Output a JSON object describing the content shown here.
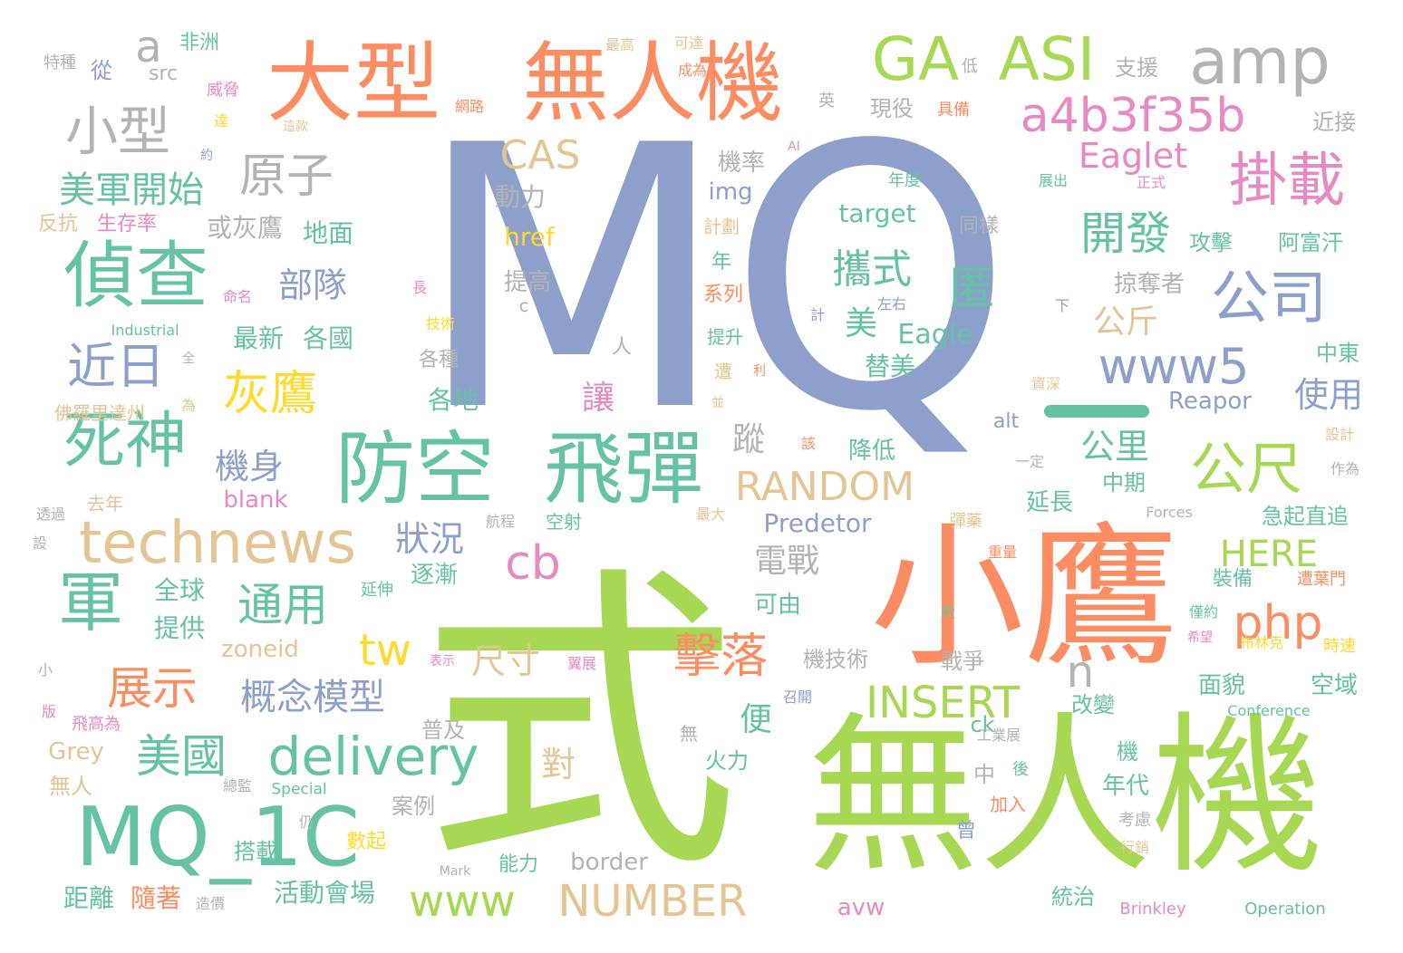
{
  "palette": {
    "blue": "#8da0cb",
    "green": "#a6d854",
    "orange": "#fc8d62",
    "teal": "#66c2a5",
    "pink": "#e78ac3",
    "yellow": "#ffd92f",
    "tan": "#e5c494",
    "gray": "#b3b3b3"
  },
  "words": {
    "w001": "MQ",
    "w002": "式",
    "w003": "無人機",
    "w004": "小鷹",
    "w005": "大型",
    "w006": "無人機",
    "w007": "防空",
    "w008": "飛彈",
    "w009": "MQ_1C",
    "w010": "偵查",
    "w011": "死神",
    "w012": "technews",
    "w013": "GA",
    "w014": "ASI",
    "w015": "amp",
    "w016": "a4b3f35b",
    "w017": "掛載",
    "w018": "公司",
    "w019": "公尺",
    "w020": "www5",
    "w021": "小型",
    "w022": "原子",
    "w023": "美軍開始",
    "w024": "軍",
    "w025": "近日",
    "w026": "灰鷹",
    "w027": "美國",
    "w028": "delivery",
    "w029": "展示",
    "w030": "通用",
    "w031": "概念模型",
    "w032": "擊落",
    "w033": "cb",
    "w034": "php",
    "w035": "HERE",
    "w036": "INSERT",
    "w037": "RANDOM",
    "w038": "NUMBER",
    "w039": "www",
    "w040": "Eaglet",
    "w041": "CAS",
    "w042": "開發",
    "w043": "攜式",
    "w044": "匿",
    "w045": "部隊",
    "w046": "機身",
    "w047": "狀況",
    "w048": "tw",
    "w049": "尺寸",
    "w050": "電戰",
    "w051": "對",
    "w052": "使用",
    "w053": "公里",
    "w054": "公斤",
    "w055": "a",
    "w056": "n",
    "w057": "蹤",
    "w058": "讓",
    "w059": "便",
    "w060": "美",
    "w061": "Eagle",
    "w062": "替美",
    "w063": "target",
    "w064": "或灰鷹",
    "w065": "最新",
    "w066": "各國",
    "w067": "地面",
    "w068": "動力",
    "w069": "img",
    "w070": "機率",
    "w071": "href",
    "w072": "提高",
    "w073": "各地",
    "w074": "各種",
    "w075": "降低",
    "w076": "blank",
    "w077": "Predetor",
    "w078": "逐漸",
    "w079": "可由",
    "w080": "全球",
    "w081": "提供",
    "w082": "zoneid",
    "w083": "機技術",
    "w084": "戰爭",
    "w085": "普及",
    "w086": "火力",
    "w087": "案例",
    "w088": "搭載",
    "w089": "活動會場",
    "w090": "距離",
    "w091": "隨著",
    "w092": "border",
    "w093": "能力",
    "w094": "數起",
    "w095": "Grey",
    "w096": "無人",
    "w097": "中期",
    "w098": "延長",
    "w099": "年代",
    "w100": "攻擊",
    "w101": "阿富汗",
    "w102": "掠奪者",
    "w103": "中東",
    "w104": "Reapor",
    "w105": "急起直追",
    "w106": "裝備",
    "w107": "面貌",
    "w108": "空域",
    "w109": "改變",
    "w110": "ck",
    "w111": "統治",
    "w112": "機",
    "w113": "中",
    "w114": "avw",
    "w115": "alt",
    "w116": "Brinkley",
    "w117": "Operation",
    "w118": "Conference",
    "w119": "Forces",
    "w120": "Mark",
    "w121": "Special",
    "w122": "Industrial",
    "w123": "src",
    "w124": "支援",
    "w125": "現役",
    "w126": "近接",
    "w127": "從",
    "w128": "非洲",
    "w129": "特種",
    "w130": "威脅",
    "w131": "最高",
    "w132": "可達",
    "w133": "成為",
    "w134": "網路",
    "w135": "具備",
    "w136": "低",
    "w137": "英",
    "w138": "反抗",
    "w139": "生存率",
    "w140": "命名",
    "w141": "技術",
    "w142": "長",
    "w143": "計劃",
    "w144": "同樣",
    "w145": "年度",
    "w146": "展出",
    "w147": "正式",
    "w148": "系列",
    "w149": "年",
    "w150": "提升",
    "w151": "遭",
    "w152": "利",
    "w153": "並",
    "w154": "左右",
    "w155": "計",
    "w156": "下",
    "w157": "資深",
    "w158": "一定",
    "w159": "設計",
    "w160": "作為",
    "w161": "佛羅里達州",
    "w162": "為",
    "w163": "去年",
    "w164": "透過",
    "w165": "航程",
    "w166": "空射",
    "w167": "最大",
    "w168": "彈藥",
    "w169": "重量",
    "w170": "延伸",
    "w171": "呎",
    "w172": "僅約",
    "w173": "希望",
    "w174": "遭葉門",
    "w175": "時速",
    "w176": "布林克",
    "w177": "表示",
    "w178": "翼展",
    "w179": "召開",
    "w180": "工業展",
    "w181": "後",
    "w182": "加入",
    "w183": "考慮",
    "w184": "行銷",
    "w185": "總監",
    "w186": "仍",
    "w187": "小",
    "w188": "版",
    "w189": "飛高為",
    "w190": "造價",
    "w191": "曾",
    "w192": "無",
    "w193": "人",
    "w194": "全",
    "w195": "C",
    "w196": "AI",
    "w197": "約",
    "w198": "達",
    "w199": "這款",
    "w200": "該",
    "w201": "設"
  }
}
